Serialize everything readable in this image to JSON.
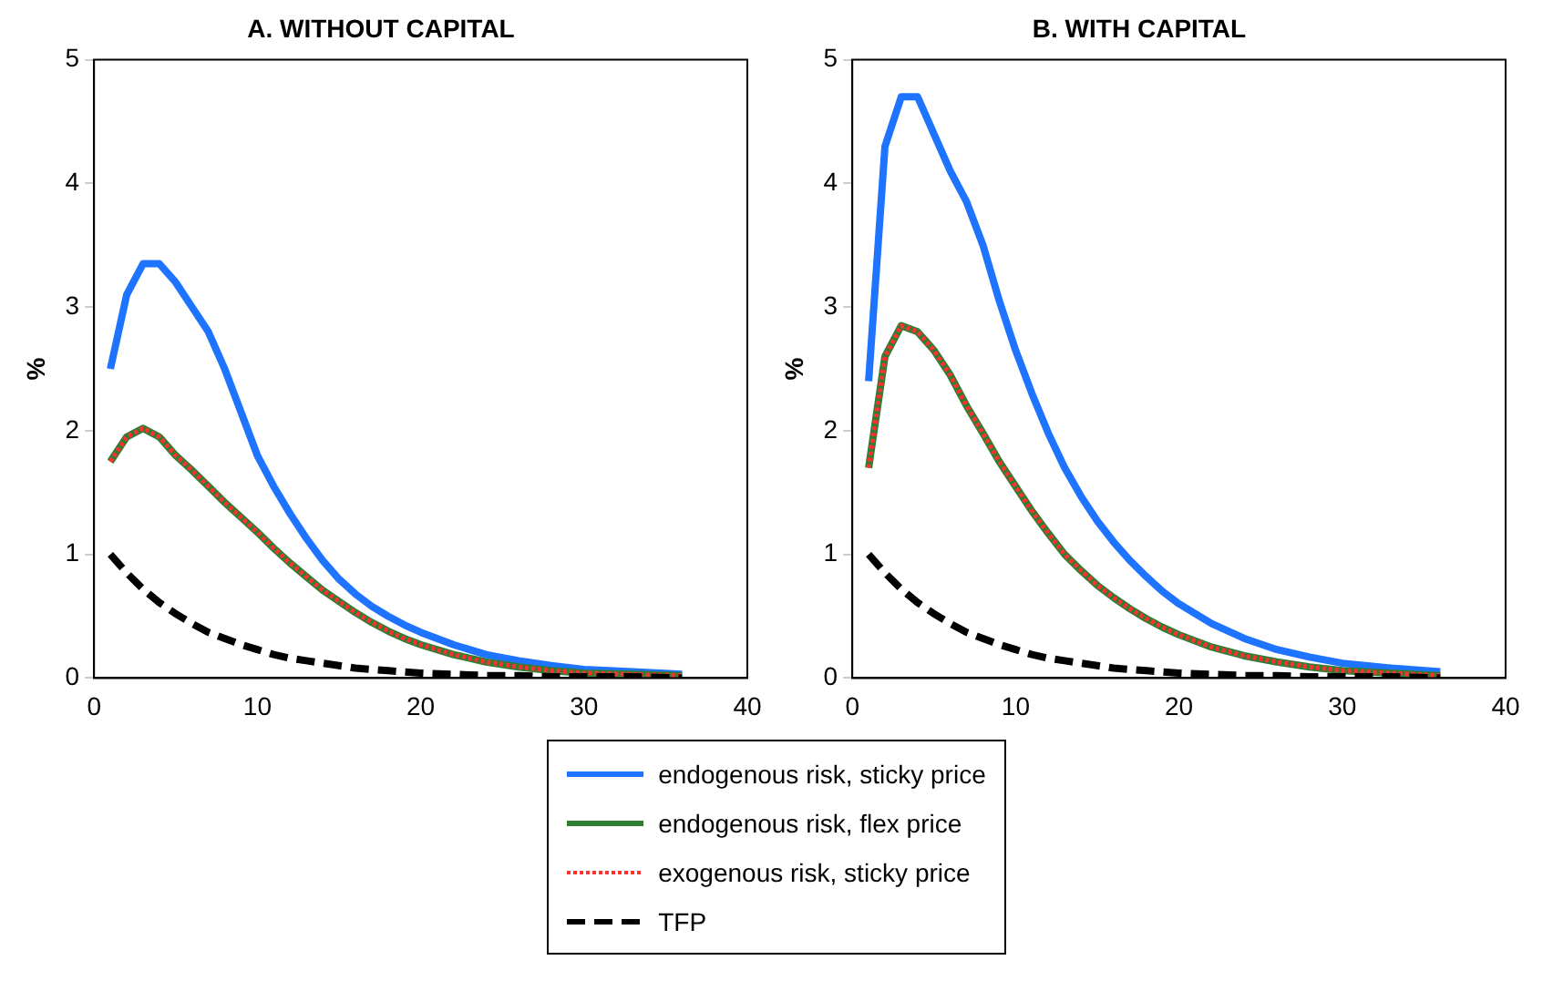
{
  "chart_data": [
    {
      "type": "line",
      "title": "A. WITHOUT CAPITAL",
      "ylabel": "%",
      "x": [
        1,
        2,
        3,
        4,
        5,
        6,
        7,
        8,
        9,
        10,
        11,
        12,
        13,
        14,
        15,
        16,
        17,
        18,
        19,
        20,
        22,
        24,
        26,
        28,
        30,
        33,
        36
      ],
      "xlim": [
        0,
        40
      ],
      "xticks": [
        0,
        10,
        20,
        30,
        40
      ],
      "ylim": [
        0,
        5
      ],
      "yticks": [
        0,
        1,
        2,
        3,
        4,
        5
      ],
      "grid": false,
      "legend": "bottom",
      "series": [
        {
          "name": "endogenous risk, sticky price",
          "color": "#1e74ff",
          "line_style": "solid",
          "values": [
            2.5,
            3.1,
            3.35,
            3.35,
            3.2,
            3.0,
            2.8,
            2.5,
            2.15,
            1.8,
            1.55,
            1.33,
            1.13,
            0.95,
            0.8,
            0.68,
            0.58,
            0.5,
            0.43,
            0.37,
            0.27,
            0.19,
            0.14,
            0.1,
            0.07,
            0.05,
            0.03
          ]
        },
        {
          "name": "endogenous risk, flex price",
          "color": "#2e7d32",
          "line_style": "solid",
          "values": [
            1.75,
            1.95,
            2.02,
            1.95,
            1.8,
            1.68,
            1.55,
            1.42,
            1.3,
            1.18,
            1.05,
            0.93,
            0.82,
            0.71,
            0.62,
            0.53,
            0.45,
            0.38,
            0.32,
            0.27,
            0.19,
            0.13,
            0.09,
            0.06,
            0.04,
            0.03,
            0.02
          ]
        },
        {
          "name": "exogenous risk, sticky price",
          "color": "#ff3030",
          "line_style": "dotted",
          "values": [
            1.75,
            1.95,
            2.02,
            1.95,
            1.8,
            1.68,
            1.55,
            1.42,
            1.3,
            1.18,
            1.05,
            0.93,
            0.82,
            0.71,
            0.62,
            0.53,
            0.45,
            0.38,
            0.32,
            0.27,
            0.19,
            0.13,
            0.09,
            0.06,
            0.04,
            0.03,
            0.02
          ]
        },
        {
          "name": "TFP",
          "color": "#000000",
          "line_style": "dashed",
          "values": [
            1,
            0.85,
            0.72,
            0.61,
            0.52,
            0.44,
            0.37,
            0.32,
            0.27,
            0.23,
            0.19,
            0.16,
            0.14,
            0.12,
            0.1,
            0.08,
            0.07,
            0.06,
            0.05,
            0.04,
            0.03,
            0.02,
            0.02,
            0.01,
            0.01,
            0.01,
            0
          ]
        }
      ]
    },
    {
      "type": "line",
      "title": "B. WITH CAPITAL",
      "ylabel": "%",
      "x": [
        1,
        2,
        3,
        4,
        5,
        6,
        7,
        8,
        9,
        10,
        11,
        12,
        13,
        14,
        15,
        16,
        17,
        18,
        19,
        20,
        22,
        24,
        26,
        28,
        30,
        33,
        36
      ],
      "xlim": [
        0,
        40
      ],
      "xticks": [
        0,
        10,
        20,
        30,
        40
      ],
      "ylim": [
        0,
        5
      ],
      "yticks": [
        0,
        1,
        2,
        3,
        4,
        5
      ],
      "grid": false,
      "series": [
        {
          "color": "#1e74ff",
          "line_style": "solid",
          "values": [
            2.4,
            4.3,
            4.7,
            4.7,
            4.4,
            4.1,
            3.85,
            3.5,
            3.05,
            2.65,
            2.3,
            1.98,
            1.7,
            1.47,
            1.27,
            1.1,
            0.95,
            0.82,
            0.7,
            0.6,
            0.44,
            0.32,
            0.23,
            0.17,
            0.12,
            0.08,
            0.05
          ]
        },
        {
          "color": "#2e7d32",
          "line_style": "solid",
          "values": [
            1.7,
            2.6,
            2.85,
            2.8,
            2.65,
            2.45,
            2.2,
            1.98,
            1.75,
            1.55,
            1.35,
            1.17,
            1.0,
            0.87,
            0.75,
            0.65,
            0.56,
            0.48,
            0.41,
            0.35,
            0.25,
            0.18,
            0.13,
            0.09,
            0.06,
            0.04,
            0.02
          ]
        },
        {
          "color": "#ff3030",
          "line_style": "dotted",
          "values": [
            1.7,
            2.6,
            2.85,
            2.8,
            2.65,
            2.45,
            2.2,
            1.98,
            1.75,
            1.55,
            1.35,
            1.17,
            1.0,
            0.87,
            0.75,
            0.65,
            0.56,
            0.48,
            0.41,
            0.35,
            0.25,
            0.18,
            0.13,
            0.09,
            0.06,
            0.04,
            0.02
          ]
        },
        {
          "color": "#000000",
          "line_style": "dashed",
          "values": [
            1,
            0.85,
            0.72,
            0.61,
            0.52,
            0.44,
            0.37,
            0.32,
            0.27,
            0.23,
            0.19,
            0.16,
            0.14,
            0.12,
            0.1,
            0.08,
            0.07,
            0.06,
            0.05,
            0.04,
            0.03,
            0.02,
            0.02,
            0.01,
            0.01,
            0.01,
            0
          ]
        }
      ]
    }
  ]
}
